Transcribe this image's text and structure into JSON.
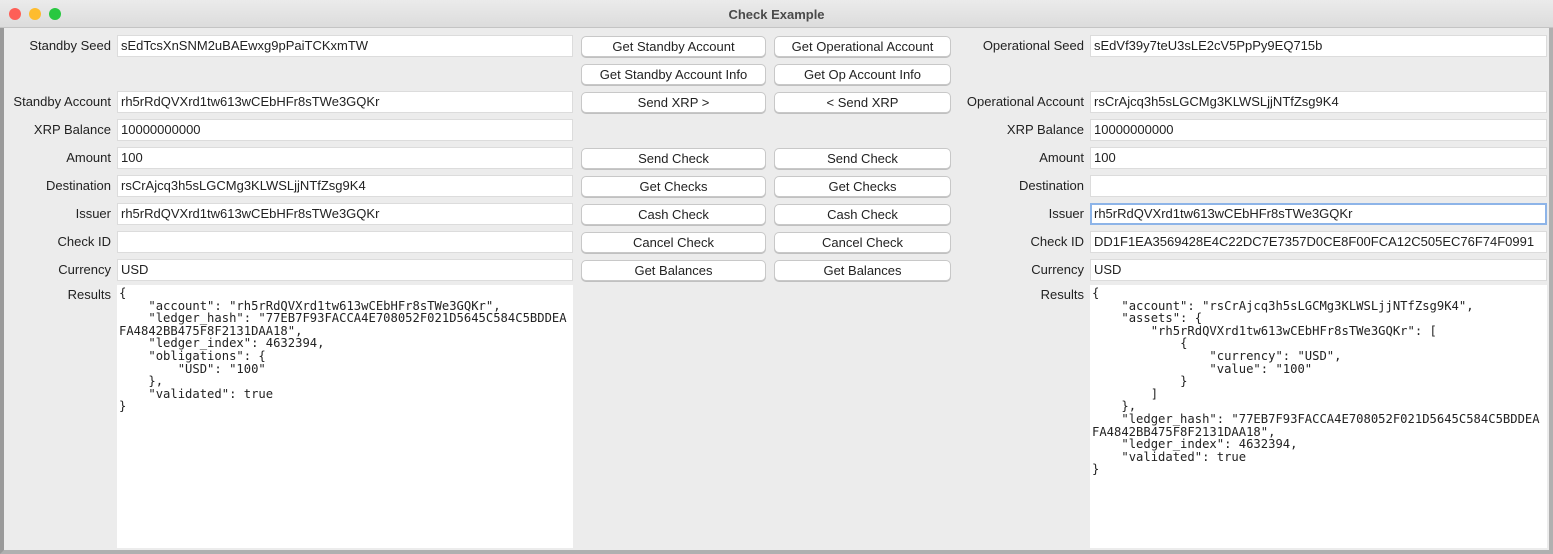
{
  "window": {
    "title": "Check Example"
  },
  "standby": {
    "seed_label": "Standby Seed",
    "seed": "sEdTcsXnSNM2uBAEwxg9pPaiTCKxmTW",
    "account_label": "Standby Account",
    "account": "rh5rRdQVXrd1tw613wCEbHFr8sTWe3GQKr",
    "balance_label": "XRP Balance",
    "balance": "10000000000",
    "amount_label": "Amount",
    "amount": "100",
    "destination_label": "Destination",
    "destination": "rsCrAjcq3h5sLGCMg3KLWSLjjNTfZsg9K4",
    "issuer_label": "Issuer",
    "issuer": "rh5rRdQVXrd1tw613wCEbHFr8sTWe3GQKr",
    "check_id_label": "Check ID",
    "check_id": "",
    "currency_label": "Currency",
    "currency": "USD",
    "results_label": "Results",
    "results": "{\n    \"account\": \"rh5rRdQVXrd1tw613wCEbHFr8sTWe3GQKr\",\n    \"ledger_hash\": \"77EB7F93FACCA4E708052F021D5645C584C5BDDEAFA4842BB475F8F2131DAA18\",\n    \"ledger_index\": 4632394,\n    \"obligations\": {\n        \"USD\": \"100\"\n    },\n    \"validated\": true\n}"
  },
  "operational": {
    "seed_label": "Operational Seed",
    "seed": "sEdVf39y7teU3sLE2cV5PpPy9EQ715b",
    "account_label": "Operational Account",
    "account": "rsCrAjcq3h5sLGCMg3KLWSLjjNTfZsg9K4",
    "balance_label": "XRP Balance",
    "balance": "10000000000",
    "amount_label": "Amount",
    "amount": "100",
    "destination_label": "Destination",
    "destination": "",
    "issuer_label": "Issuer",
    "issuer": "rh5rRdQVXrd1tw613wCEbHFr8sTWe3GQKr",
    "check_id_label": "Check ID",
    "check_id": "DD1F1EA3569428E4C22DC7E7357D0CE8F00FCA12C505EC76F74F0991",
    "currency_label": "Currency",
    "currency": "USD",
    "results_label": "Results",
    "results": "{\n    \"account\": \"rsCrAjcq3h5sLGCMg3KLWSLjjNTfZsg9K4\",\n    \"assets\": {\n        \"rh5rRdQVXrd1tw613wCEbHFr8sTWe3GQKr\": [\n            {\n                \"currency\": \"USD\",\n                \"value\": \"100\"\n            }\n        ]\n    },\n    \"ledger_hash\": \"77EB7F93FACCA4E708052F021D5645C584C5BDDEAFA4842BB475F8F2131DAA18\",\n    \"ledger_index\": 4632394,\n    \"validated\": true\n}"
  },
  "buttons": {
    "standby": [
      "Get Standby Account",
      "Get Standby Account Info",
      "Send XRP >",
      "Send  Check",
      "Get Checks",
      "Cash  Check",
      "Cancel  Check",
      "Get Balances"
    ],
    "operational": [
      "Get Operational Account",
      "Get Op Account Info",
      "< Send XRP",
      "Send Check",
      "Get Checks",
      "Cash Check",
      "Cancel Check",
      "Get Balances"
    ]
  },
  "colors": {
    "close": "#fe5f57",
    "minimize": "#febc2e",
    "zoom": "#28c840",
    "focus": "#8db4e8"
  }
}
